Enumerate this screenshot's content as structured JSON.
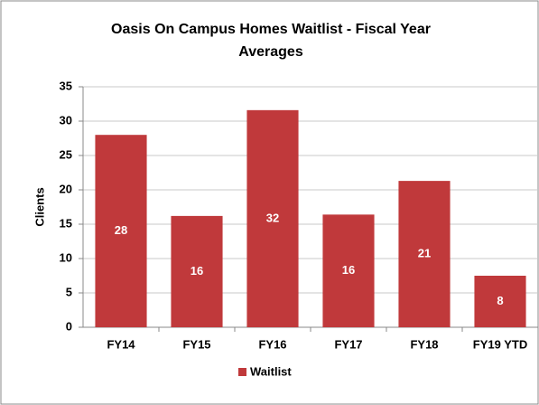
{
  "chart_data": {
    "type": "bar",
    "title": "Oasis On Campus Homes Waitlist - Fiscal Year Averages",
    "y_label": "Clients",
    "categories": [
      "FY14",
      "FY15",
      "FY16",
      "FY17",
      "FY18",
      "FY19 YTD"
    ],
    "series": [
      {
        "name": "Waitlist",
        "color": "#c0393b",
        "values": [
          28,
          16.2,
          31.6,
          16.4,
          21.3,
          7.5
        ],
        "value_labels": [
          "28",
          "16",
          "32",
          "16",
          "21",
          "8"
        ]
      }
    ],
    "ylim": [
      0,
      35
    ],
    "yticks": [
      0,
      5,
      10,
      15,
      20,
      25,
      30,
      35
    ],
    "grid": true,
    "legend": "bottom"
  }
}
